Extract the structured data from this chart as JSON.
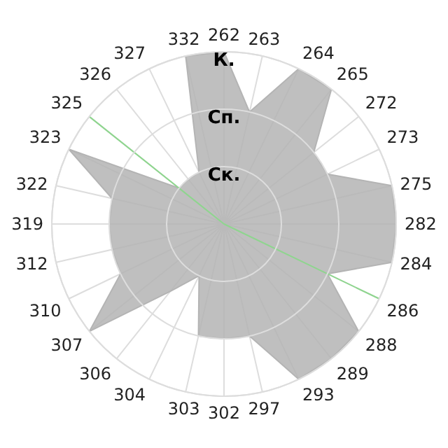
{
  "chart_data": {
    "type": "radar",
    "categories": [
      "262",
      "263",
      "264",
      "265",
      "272",
      "273",
      "275",
      "282",
      "284",
      "286",
      "288",
      "289",
      "293",
      "297",
      "302",
      "303",
      "304",
      "306",
      "307",
      "310",
      "312",
      "319",
      "322",
      "323",
      "325",
      "326",
      "327",
      "332"
    ],
    "ylim": [
      0,
      3
    ],
    "yticks": [
      {
        "value": 1,
        "label": "Ск."
      },
      {
        "value": 2,
        "label": "Сп."
      },
      {
        "value": 3,
        "label": "К."
      }
    ],
    "grid": true,
    "series": [
      {
        "color": "#b4b4b4",
        "values": [
          3,
          2,
          3,
          3,
          2,
          2,
          3,
          3,
          3,
          2,
          3,
          3,
          3,
          2,
          2,
          2,
          1,
          1.5,
          3,
          2,
          2,
          2,
          2,
          3,
          1,
          1,
          1,
          3
        ]
      },
      {
        "color": "#8ed68e",
        "values": [
          0,
          0,
          0,
          0,
          0,
          0,
          0,
          0,
          0,
          3,
          0,
          0,
          0,
          0,
          0,
          0,
          0,
          0,
          0,
          0,
          0,
          0,
          0,
          0,
          3,
          0,
          0,
          0
        ]
      }
    ]
  }
}
